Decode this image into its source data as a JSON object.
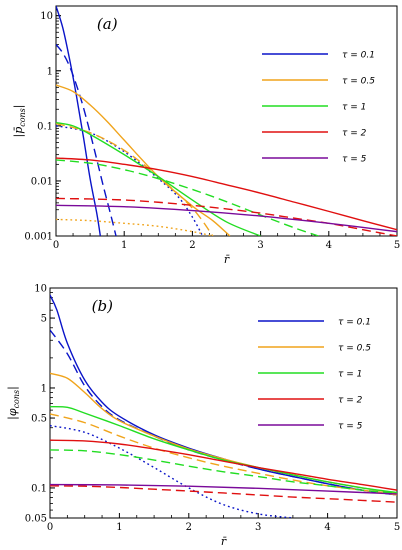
{
  "chart_data": [
    {
      "type": "line",
      "panel_label": "(a)",
      "ylabel_main": "|p̄",
      "ylabel_sub": "cons",
      "ylabel_close": "|",
      "xlabel": "r̄",
      "xlim": [
        0,
        5
      ],
      "ylim": [
        0.001,
        15
      ],
      "yscale": "log",
      "xticks": [
        "0",
        "1",
        "2",
        "3",
        "4",
        "5"
      ],
      "yticks": [
        "0.001",
        "0.01",
        "0.1",
        "1",
        "10"
      ],
      "legend_position": "right",
      "series": [
        {
          "name": "τ = 0.1",
          "color": "#0a14c8",
          "style": "solid",
          "x": [
            0,
            0.1,
            0.2,
            0.3,
            0.4,
            0.5,
            0.6,
            0.65
          ],
          "y": [
            15,
            6,
            1.6,
            0.35,
            0.065,
            0.011,
            0.0025,
            0.001
          ]
        },
        {
          "name": "",
          "color": "#0a14c8",
          "style": "dashed",
          "x": [
            0,
            0.1,
            0.2,
            0.3,
            0.4,
            0.5,
            0.6,
            0.7,
            0.8,
            0.88
          ],
          "y": [
            3,
            2.1,
            1.2,
            0.55,
            0.22,
            0.075,
            0.024,
            0.0075,
            0.0025,
            0.001
          ]
        },
        {
          "name": "",
          "color": "#0a14c8",
          "style": "dotted",
          "x": [
            0,
            0.5,
            1.0,
            1.5,
            1.8,
            2.0,
            2.15
          ],
          "y": [
            0.1,
            0.075,
            0.034,
            0.011,
            0.005,
            0.0022,
            0.001
          ]
        },
        {
          "name": "τ = 0.5",
          "color": "#f0a41c",
          "style": "solid",
          "x": [
            0,
            0.25,
            0.5,
            0.75,
            1.0,
            1.5,
            2.0,
            2.3,
            2.55
          ],
          "y": [
            0.55,
            0.42,
            0.24,
            0.12,
            0.055,
            0.012,
            0.0035,
            0.0019,
            0.001
          ]
        },
        {
          "name": "",
          "color": "#f0a41c",
          "style": "dashed",
          "x": [
            0,
            0.5,
            1.0,
            1.5,
            2.0,
            2.3
          ],
          "y": [
            0.11,
            0.075,
            0.036,
            0.012,
            0.0032,
            0.001
          ]
        },
        {
          "name": "",
          "color": "#f0a41c",
          "style": "dotted",
          "x": [
            0,
            0.5,
            1.0,
            1.5,
            2.0,
            2.3
          ],
          "y": [
            0.002,
            0.0019,
            0.0017,
            0.0015,
            0.0012,
            0.001
          ]
        },
        {
          "name": "τ = 1",
          "color": "#22dd22",
          "style": "solid",
          "x": [
            0,
            0.25,
            0.5,
            1.0,
            1.5,
            2.0,
            2.5,
            3.0
          ],
          "y": [
            0.115,
            0.1,
            0.07,
            0.03,
            0.012,
            0.0045,
            0.0018,
            0.001
          ]
        },
        {
          "name": "",
          "color": "#22dd22",
          "style": "dashed",
          "x": [
            0,
            0.5,
            1.0,
            1.5,
            2.0,
            2.5,
            3.0,
            3.5,
            3.85
          ],
          "y": [
            0.024,
            0.021,
            0.016,
            0.011,
            0.007,
            0.0042,
            0.0024,
            0.0014,
            0.001
          ]
        },
        {
          "name": "τ = 2",
          "color": "#e01010",
          "style": "solid",
          "x": [
            0,
            0.5,
            1.0,
            1.5,
            2.0,
            2.5,
            3.0,
            3.5,
            4.0,
            4.5,
            5.0
          ],
          "y": [
            0.026,
            0.024,
            0.02,
            0.016,
            0.012,
            0.0085,
            0.006,
            0.0041,
            0.0028,
            0.0019,
            0.0013
          ]
        },
        {
          "name": "",
          "color": "#e01010",
          "style": "dashed",
          "x": [
            0,
            0.5,
            1.0,
            1.5,
            2.0,
            2.5,
            3.0,
            3.5,
            4.0,
            4.5,
            5.0
          ],
          "y": [
            0.0048,
            0.0047,
            0.0045,
            0.0041,
            0.0036,
            0.0031,
            0.0026,
            0.0021,
            0.0017,
            0.0013,
            0.001
          ]
        },
        {
          "name": "τ = 5",
          "color": "#7a0a9a",
          "style": "solid",
          "x": [
            0,
            1.0,
            2.0,
            3.0,
            4.0,
            5.0
          ],
          "y": [
            0.0036,
            0.0034,
            0.0029,
            0.0023,
            0.0017,
            0.0012
          ]
        }
      ]
    },
    {
      "type": "line",
      "panel_label": "(b)",
      "ylabel_main": "|φ",
      "ylabel_sub": "cons",
      "ylabel_close": "|",
      "xlabel": "r̄",
      "xlim": [
        0,
        5
      ],
      "ylim": [
        0.05,
        10
      ],
      "yscale": "log",
      "xticks": [
        "0",
        "1",
        "2",
        "3",
        "4",
        "5"
      ],
      "yticks": [
        "0.05",
        "0.1",
        "0.5",
        "1",
        "5",
        "10"
      ],
      "legend_position": "right",
      "series": [
        {
          "name": "τ = 0.1",
          "color": "#0a14c8",
          "style": "solid",
          "x": [
            0,
            0.1,
            0.25,
            0.5,
            0.75,
            1.0,
            1.5,
            2.0,
            2.5,
            3.0,
            3.5,
            4.0,
            4.5,
            5.0
          ],
          "y": [
            8.5,
            6.0,
            2.8,
            1.2,
            0.72,
            0.52,
            0.34,
            0.25,
            0.195,
            0.155,
            0.13,
            0.11,
            0.095,
            0.085
          ]
        },
        {
          "name": "",
          "color": "#0a14c8",
          "style": "dashed",
          "x": [
            0,
            0.25,
            0.5,
            0.75,
            1.0,
            1.5,
            2.0,
            2.5,
            3.0,
            3.5,
            4.0,
            4.5,
            5.0
          ],
          "y": [
            3.8,
            2.2,
            1.05,
            0.65,
            0.48,
            0.33,
            0.24,
            0.19,
            0.155,
            0.13,
            0.11,
            0.095,
            0.085
          ]
        },
        {
          "name": "",
          "color": "#0a14c8",
          "style": "dotted",
          "x": [
            0,
            0.5,
            1.0,
            1.5,
            2.0,
            2.5,
            3.0,
            3.5
          ],
          "y": [
            0.42,
            0.36,
            0.25,
            0.16,
            0.1,
            0.068,
            0.055,
            0.05
          ]
        },
        {
          "name": "τ = 0.5",
          "color": "#f0a41c",
          "style": "solid",
          "x": [
            0,
            0.25,
            0.5,
            0.75,
            1.0,
            1.5,
            2.0,
            2.5,
            3.0,
            3.5,
            4.0,
            4.5,
            5.0
          ],
          "y": [
            1.4,
            1.25,
            0.9,
            0.62,
            0.47,
            0.33,
            0.245,
            0.195,
            0.16,
            0.135,
            0.115,
            0.1,
            0.088
          ]
        },
        {
          "name": "",
          "color": "#f0a41c",
          "style": "dashed",
          "x": [
            0,
            0.5,
            1.0,
            1.5,
            2.0,
            2.5,
            3.0,
            3.5,
            4.0,
            4.5,
            5.0
          ],
          "y": [
            0.55,
            0.45,
            0.33,
            0.25,
            0.2,
            0.165,
            0.14,
            0.12,
            0.105,
            0.095,
            0.085
          ]
        },
        {
          "name": "τ = 1",
          "color": "#22dd22",
          "style": "solid",
          "x": [
            0,
            0.25,
            0.5,
            1.0,
            1.5,
            2.0,
            2.5,
            3.0,
            3.5,
            4.0,
            4.5,
            5.0
          ],
          "y": [
            0.65,
            0.64,
            0.56,
            0.42,
            0.31,
            0.24,
            0.19,
            0.16,
            0.135,
            0.115,
            0.1,
            0.09
          ]
        },
        {
          "name": "",
          "color": "#22dd22",
          "style": "dashed",
          "x": [
            0,
            0.5,
            1.0,
            1.5,
            2.0,
            2.5,
            3.0,
            3.5,
            4.0,
            4.5,
            5.0
          ],
          "y": [
            0.24,
            0.235,
            0.215,
            0.19,
            0.165,
            0.145,
            0.13,
            0.115,
            0.105,
            0.095,
            0.088
          ]
        },
        {
          "name": "τ = 2",
          "color": "#e01010",
          "style": "solid",
          "x": [
            0,
            0.5,
            1.0,
            1.5,
            2.0,
            2.5,
            3.0,
            3.5,
            4.0,
            4.5,
            5.0
          ],
          "y": [
            0.3,
            0.295,
            0.275,
            0.245,
            0.215,
            0.185,
            0.16,
            0.14,
            0.122,
            0.108,
            0.095
          ]
        },
        {
          "name": "",
          "color": "#e01010",
          "style": "dashed",
          "x": [
            0,
            0.5,
            1.0,
            1.5,
            2.0,
            2.5,
            3.0,
            3.5,
            4.0,
            4.5,
            5.0
          ],
          "y": [
            0.105,
            0.104,
            0.101,
            0.097,
            0.093,
            0.089,
            0.085,
            0.081,
            0.078,
            0.075,
            0.072
          ]
        },
        {
          "name": "τ = 5",
          "color": "#7a0a9a",
          "style": "solid",
          "x": [
            0,
            1.0,
            2.0,
            3.0,
            4.0,
            5.0
          ],
          "y": [
            0.108,
            0.107,
            0.104,
            0.099,
            0.093,
            0.087
          ]
        }
      ]
    }
  ]
}
